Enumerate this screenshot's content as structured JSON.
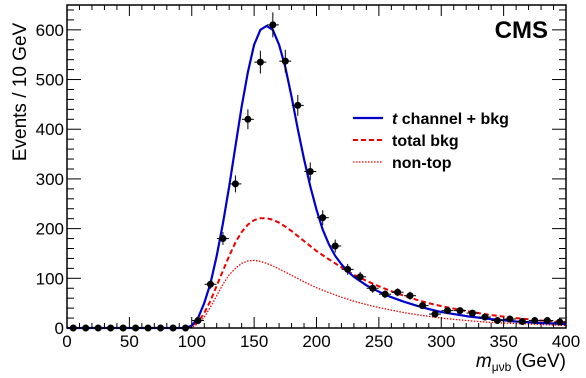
{
  "chart_data": {
    "type": "scatter",
    "label": "CMS",
    "ylabel": "Events / 10 GeV",
    "xlabel_main": "m",
    "xlabel_sub": "μνb",
    "xlabel_unit": "(GeV)",
    "xlim": [
      0,
      400
    ],
    "ylim": [
      0,
      650
    ],
    "xticks": [
      0,
      50,
      100,
      150,
      200,
      250,
      300,
      350,
      400
    ],
    "yticks": [
      0,
      100,
      200,
      300,
      400,
      500,
      600
    ],
    "legend_position": "right",
    "legend": [
      {
        "prefix": "t",
        "text": " channel + bkg",
        "style": "solid",
        "color": "#0000cc"
      },
      {
        "prefix": "",
        "text": "total bkg",
        "style": "dashed",
        "color": "#ee0000"
      },
      {
        "prefix": "",
        "text": "non-top",
        "style": "dotted",
        "color": "#ee0000"
      }
    ],
    "data_points": {
      "name": "data",
      "x": [
        5,
        15,
        25,
        35,
        45,
        55,
        65,
        75,
        85,
        95,
        105,
        115,
        125,
        135,
        145,
        155,
        165,
        175,
        185,
        195,
        205,
        215,
        225,
        235,
        245,
        255,
        265,
        275,
        285,
        295,
        305,
        315,
        325,
        335,
        345,
        355,
        365,
        375,
        385,
        395
      ],
      "y": [
        0,
        0,
        0,
        0,
        0,
        0,
        0,
        0,
        0,
        0,
        15,
        88,
        180,
        290,
        420,
        535,
        610,
        537,
        448,
        315,
        222,
        165,
        118,
        103,
        80,
        68,
        72,
        65,
        45,
        28,
        35,
        35,
        30,
        22,
        15,
        18,
        13,
        15,
        15,
        12
      ],
      "err": [
        0,
        0,
        0,
        0,
        0,
        0,
        0,
        0,
        0,
        0,
        4,
        9,
        13,
        17,
        20,
        23,
        25,
        23,
        21,
        18,
        15,
        13,
        11,
        10,
        9,
        8,
        8,
        8,
        7,
        5,
        6,
        6,
        5,
        5,
        4,
        4,
        4,
        4,
        4,
        3
      ]
    },
    "series": [
      {
        "name": "t channel + bkg",
        "color": "#0000cc",
        "style": "solid",
        "x": [
          0,
          95,
          100,
          105,
          110,
          115,
          120,
          125,
          130,
          135,
          140,
          145,
          150,
          155,
          160,
          165,
          170,
          175,
          180,
          185,
          190,
          195,
          200,
          205,
          210,
          215,
          220,
          225,
          230,
          240,
          250,
          260,
          270,
          280,
          290,
          300,
          320,
          340,
          360,
          380,
          400
        ],
        "y": [
          0,
          0,
          5,
          20,
          50,
          90,
          145,
          210,
          285,
          365,
          445,
          515,
          570,
          600,
          608,
          600,
          570,
          525,
          465,
          400,
          340,
          285,
          238,
          198,
          168,
          145,
          128,
          114,
          103,
          86,
          73,
          62,
          53,
          45,
          38,
          32,
          24,
          18,
          13,
          10,
          8
        ]
      },
      {
        "name": "total bkg",
        "color": "#ee0000",
        "style": "dashed",
        "x": [
          0,
          95,
          100,
          105,
          110,
          115,
          120,
          125,
          130,
          135,
          140,
          145,
          150,
          155,
          160,
          165,
          170,
          175,
          180,
          190,
          200,
          210,
          220,
          230,
          240,
          250,
          260,
          270,
          280,
          290,
          300,
          320,
          340,
          360,
          380,
          400
        ],
        "y": [
          0,
          0,
          3,
          12,
          30,
          55,
          85,
          115,
          145,
          172,
          193,
          208,
          217,
          221,
          221,
          218,
          212,
          204,
          195,
          175,
          155,
          138,
          122,
          107,
          95,
          84,
          74,
          65,
          57,
          50,
          44,
          34,
          26,
          20,
          15,
          12
        ]
      },
      {
        "name": "non-top",
        "color": "#ee0000",
        "style": "dotted",
        "x": [
          0,
          95,
          100,
          105,
          110,
          115,
          120,
          125,
          130,
          135,
          140,
          145,
          150,
          155,
          160,
          165,
          170,
          180,
          190,
          200,
          210,
          220,
          230,
          240,
          250,
          260,
          270,
          280,
          300,
          320,
          340,
          360,
          380,
          400
        ],
        "y": [
          0,
          0,
          2,
          8,
          22,
          42,
          65,
          88,
          107,
          120,
          130,
          135,
          136,
          134,
          130,
          125,
          119,
          106,
          93,
          81,
          71,
          62,
          54,
          47,
          41,
          36,
          31,
          27,
          20,
          15,
          11,
          9,
          7,
          5
        ]
      }
    ]
  }
}
